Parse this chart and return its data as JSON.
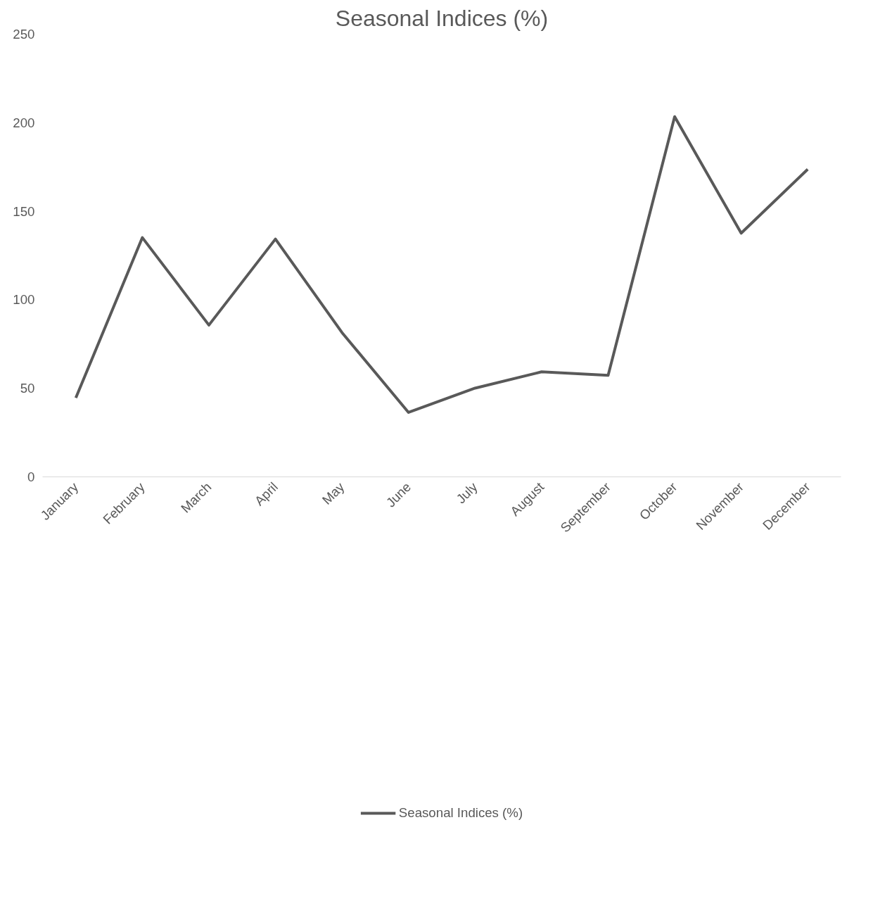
{
  "chart_data": {
    "type": "line",
    "title": "Seasonal Indices (%)",
    "categories": [
      "January",
      "February",
      "March",
      "April",
      "May",
      "June",
      "July",
      "August",
      "September",
      "October",
      "November",
      "December"
    ],
    "series": [
      {
        "name": "Seasonal Indices (%)",
        "color": "#595959",
        "values": [
          44.6,
          135.1,
          85.7,
          134.3,
          81.5,
          36.4,
          50.1,
          59.3,
          57.3,
          203.4,
          137.6,
          173.7
        ]
      }
    ],
    "ylim": [
      0,
      250
    ],
    "yticks": [
      0,
      50,
      100,
      150,
      200,
      250
    ],
    "grid": false,
    "legend": "bottom",
    "marker": "none",
    "line_style": "solid"
  }
}
